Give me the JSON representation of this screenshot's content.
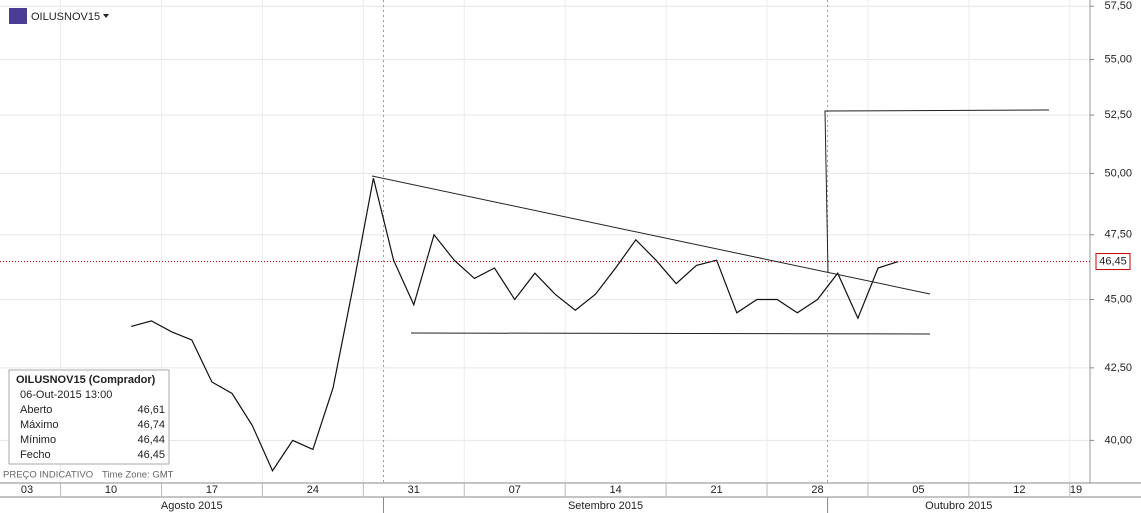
{
  "chart_data": {
    "type": "line",
    "x": [
      "2015-08-13",
      "2015-08-14",
      "2015-08-17",
      "2015-08-18",
      "2015-08-19",
      "2015-08-20",
      "2015-08-21",
      "2015-08-24",
      "2015-08-25",
      "2015-08-26",
      "2015-08-27",
      "2015-08-28",
      "2015-08-31",
      "2015-09-01",
      "2015-09-02",
      "2015-09-03",
      "2015-09-04",
      "2015-09-07",
      "2015-09-08",
      "2015-09-09",
      "2015-09-10",
      "2015-09-11",
      "2015-09-14",
      "2015-09-15",
      "2015-09-16",
      "2015-09-17",
      "2015-09-18",
      "2015-09-21",
      "2015-09-22",
      "2015-09-23",
      "2015-09-24",
      "2015-09-25",
      "2015-09-28",
      "2015-09-29",
      "2015-09-30",
      "2015-10-01",
      "2015-10-02",
      "2015-10-05",
      "2015-10-06"
    ],
    "series": [
      {
        "name": "OILUSNOV15",
        "color": "#111111",
        "values": [
          44.0,
          44.2,
          43.8,
          43.5,
          42.0,
          41.6,
          40.5,
          39.0,
          40.0,
          39.7,
          41.8,
          45.5,
          49.8,
          46.5,
          44.8,
          47.5,
          46.5,
          45.8,
          46.2,
          45.0,
          46.0,
          45.2,
          44.6,
          45.2,
          46.2,
          47.3,
          46.5,
          45.6,
          46.3,
          46.5,
          44.5,
          45.0,
          45.0,
          44.5,
          45.0,
          46.0,
          44.3,
          46.2,
          46.45
        ]
      }
    ],
    "xlim": [
      "2015-08-05",
      "2015-10-20"
    ],
    "xticks": [
      {
        "value": "2015-08-03",
        "label": "03"
      },
      {
        "value": "2015-08-10",
        "label": "10"
      },
      {
        "value": "2015-08-17",
        "label": "17"
      },
      {
        "value": "2015-08-24",
        "label": "24"
      },
      {
        "value": "2015-08-31",
        "label": "31"
      },
      {
        "value": "2015-09-07",
        "label": "07"
      },
      {
        "value": "2015-09-14",
        "label": "14"
      },
      {
        "value": "2015-09-21",
        "label": "21"
      },
      {
        "value": "2015-09-28",
        "label": "28"
      },
      {
        "value": "2015-10-05",
        "label": "05"
      },
      {
        "value": "2015-10-12",
        "label": "12"
      },
      {
        "value": "2015-10-19",
        "label": "19"
      }
    ],
    "months": [
      {
        "value": "2015-08-01",
        "label": "Agosto 2015"
      },
      {
        "value": "2015-09-01",
        "label": "Setembro 2015"
      },
      {
        "value": "2015-10-01",
        "label": "Outubro 2015"
      }
    ],
    "ylim": [
      38.6,
      57.8
    ],
    "log_scale": true,
    "grid": true,
    "yticks": [
      {
        "value": 40,
        "label": "40,00"
      },
      {
        "value": 42.5,
        "label": "42,50"
      },
      {
        "value": 45,
        "label": "45,00"
      },
      {
        "value": 47.5,
        "label": "47,50"
      },
      {
        "value": 50,
        "label": "50,00"
      },
      {
        "value": 52.5,
        "label": "52,50"
      },
      {
        "value": 55,
        "label": "55,00"
      },
      {
        "value": 57.5,
        "label": "57,50"
      }
    ],
    "last_price": {
      "value": 46.45,
      "label": "46,45",
      "color": "#cc0000"
    }
  },
  "info_box": {
    "title": "OILUSNOV15 (Comprador)",
    "datetime": "06-Out-2015 13:00",
    "rows": [
      [
        "Aberto",
        "46,61"
      ],
      [
        "Máximo",
        "46,74"
      ],
      [
        "Mínimo",
        "46,44"
      ],
      [
        "Fecho",
        "46,45"
      ]
    ]
  },
  "footer": {
    "note": "PREÇO INDICATIVO",
    "timezone": "Time Zone: GMT"
  }
}
